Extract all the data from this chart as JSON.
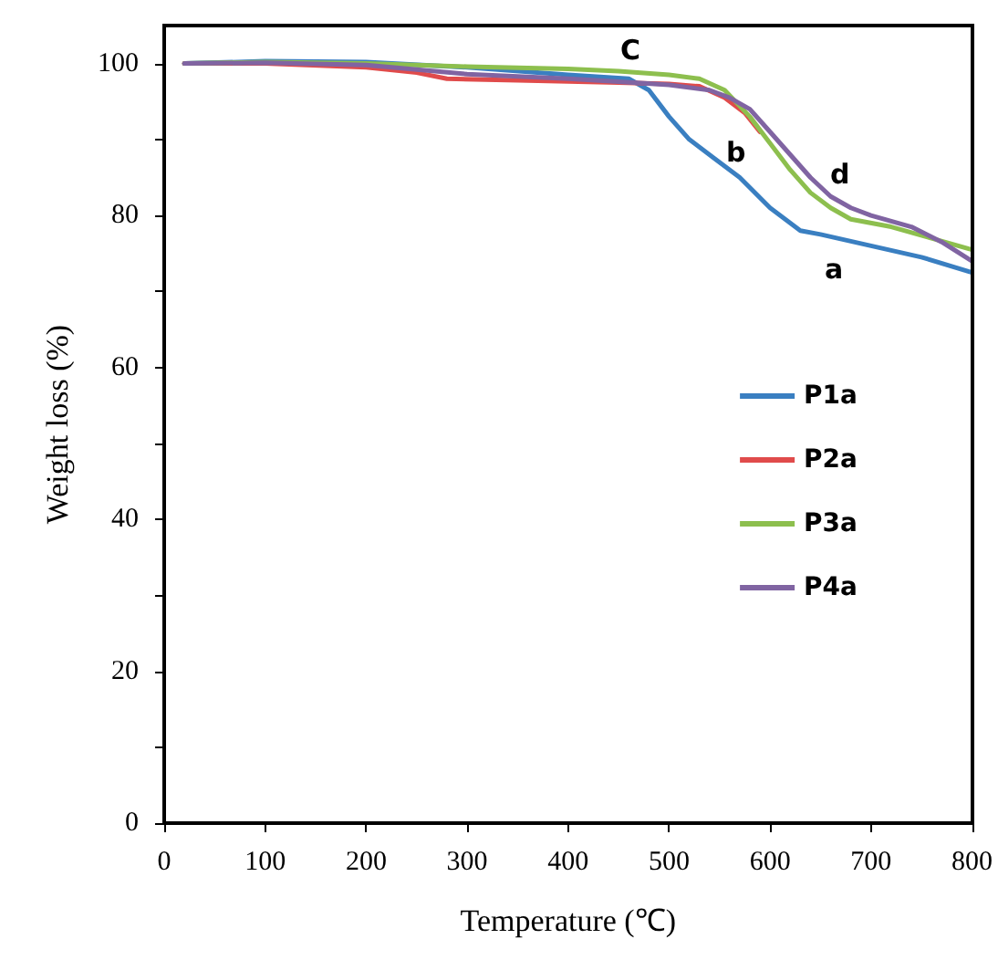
{
  "chart_data": {
    "type": "line",
    "xlabel": "Temperature (℃)",
    "ylabel": "Weight loss (%)",
    "xlim": [
      0,
      800
    ],
    "xticks": [
      0,
      100,
      200,
      300,
      400,
      500,
      600,
      700,
      800
    ],
    "ylim": [
      0,
      105
    ],
    "yticks": [
      0,
      {
        "value": 10,
        "label": null
      },
      20,
      {
        "value": 30,
        "label": null
      },
      40,
      {
        "value": 50,
        "label": null
      },
      60,
      {
        "value": 70,
        "label": null
      },
      80,
      {
        "value": 90,
        "label": null
      },
      100
    ],
    "grid": false,
    "legend": "right",
    "marker": "none",
    "line_style": "solid",
    "series": [
      {
        "name": "P1a",
        "color": "#3a7fc1",
        "x": [
          20,
          100,
          200,
          300,
          400,
          460,
          480,
          500,
          520,
          545,
          570,
          600,
          630,
          650,
          700,
          750,
          800
        ],
        "values": [
          100,
          100.3,
          100.2,
          99.5,
          98.5,
          98,
          96.5,
          93,
          90,
          87.5,
          85,
          81,
          78,
          77.5,
          76,
          74.5,
          72.5
        ]
      },
      {
        "name": "P2a",
        "color": "#e04b4b",
        "x": [
          20,
          100,
          200,
          250,
          280,
          350,
          450,
          500,
          530,
          555,
          575,
          590
        ],
        "values": [
          100,
          100,
          99.5,
          98.8,
          98,
          97.8,
          97.5,
          97.3,
          97,
          95.5,
          93.5,
          91
        ]
      },
      {
        "name": "P3a",
        "color": "#8dbf4e",
        "x": [
          20,
          100,
          200,
          300,
          400,
          450,
          500,
          530,
          555,
          580,
          600,
          620,
          640,
          660,
          680,
          720,
          760,
          800
        ],
        "values": [
          100,
          100.2,
          100,
          99.6,
          99.3,
          99,
          98.5,
          98,
          96.5,
          93,
          89.5,
          86,
          83,
          81,
          79.5,
          78.5,
          77,
          75.5
        ]
      },
      {
        "name": "P4a",
        "color": "#8064a2",
        "x": [
          20,
          100,
          200,
          300,
          400,
          450,
          500,
          540,
          560,
          580,
          600,
          620,
          640,
          660,
          680,
          700,
          740,
          770,
          800
        ],
        "values": [
          100,
          100.1,
          99.8,
          98.6,
          98,
          97.6,
          97.2,
          96.5,
          95.5,
          94,
          91,
          88,
          85,
          82.5,
          81,
          80,
          78.5,
          76.5,
          74
        ]
      }
    ],
    "annotations": [
      "C",
      "b",
      "d",
      "a"
    ]
  }
}
